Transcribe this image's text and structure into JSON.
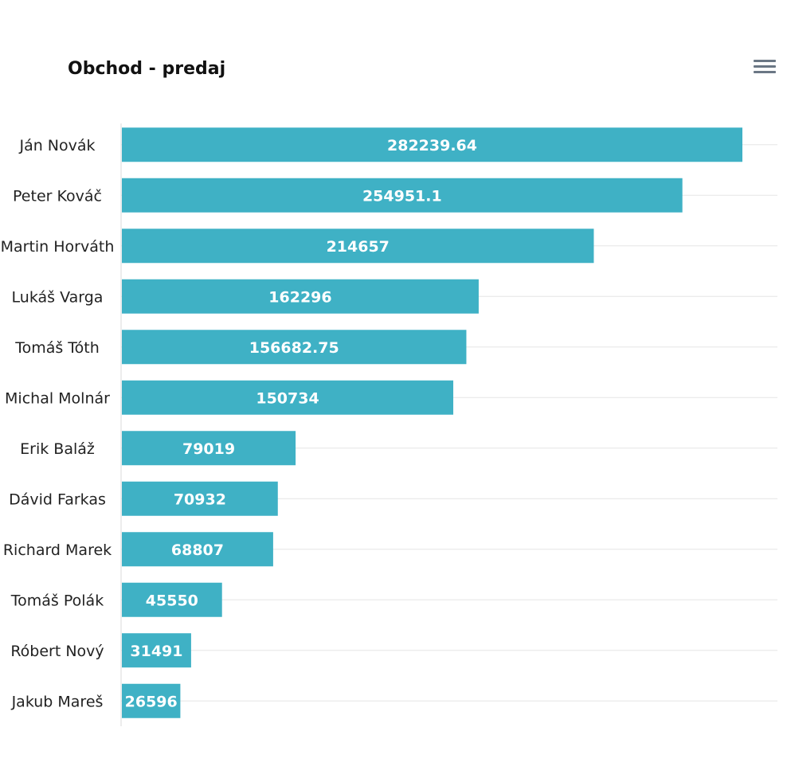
{
  "colors": {
    "bar": "#3fb1c5",
    "bar_label": "#ffffff",
    "axis_label": "#222222",
    "grid": "#e6e6e6",
    "menu": "#6b7785"
  },
  "menu": {
    "icon": "hamburger-menu-icon"
  },
  "chart_data": {
    "type": "bar",
    "orientation": "horizontal",
    "title": "Obchod - predaj",
    "categories": [
      "Ján Novák",
      "Peter Kováč",
      "Martin Horváth",
      "Lukáš Varga",
      "Tomáš Tóth",
      "Michal Molnár",
      "Erik Baláž",
      "Dávid Farkas",
      "Richard Marek",
      "Tomáš Polák",
      "Róbert Nový",
      "Jakub Mareš"
    ],
    "values": [
      282239.64,
      254951.1,
      214657,
      162296,
      156682.75,
      150734,
      79019,
      70932,
      68807,
      45550,
      31491,
      26596
    ],
    "value_labels": [
      "282239.64",
      "254951.1",
      "214657",
      "162296",
      "156682.75",
      "150734",
      "79019",
      "70932",
      "68807",
      "45550",
      "31491",
      "26596"
    ],
    "xlim": [
      0,
      300000
    ],
    "data_labels": true,
    "grid": true,
    "legend": false
  }
}
